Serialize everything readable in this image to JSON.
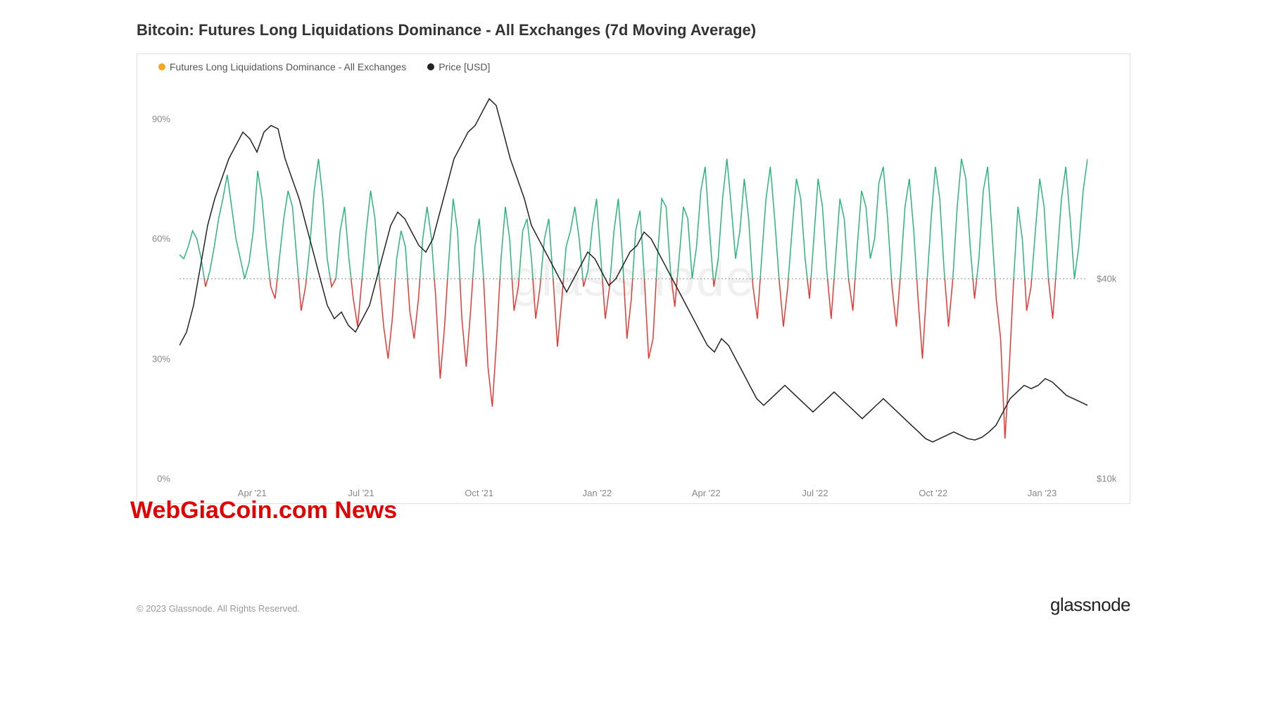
{
  "title": "Bitcoin: Futures Long Liquidations Dominance - All Exchanges (7d Moving Average)",
  "legend": {
    "series1": {
      "label": "Futures Long Liquidations Dominance - All Exchanges",
      "color": "#f5a623"
    },
    "series2": {
      "label": "Price [USD]",
      "color": "#222222"
    }
  },
  "watermark_center": "glassnode",
  "watermark_overlay": "WebGiaCoin.com News",
  "copyright": "© 2023 Glassnode. All Rights Reserved.",
  "brand": "glassnode",
  "chart": {
    "type": "line",
    "background_color": "#ffffff",
    "border_color": "#e0e0e0",
    "threshold_line": {
      "y_percent": 50,
      "color": "#888888",
      "dash": "2,3"
    },
    "y_left": {
      "min": 0,
      "max": 100,
      "ticks": [
        0,
        30,
        60,
        90
      ],
      "labels": [
        "0%",
        "30%",
        "60%",
        "90%"
      ],
      "color": "#888888",
      "fontsize": 13
    },
    "y_right": {
      "min": 10000,
      "max": 70000,
      "ticks": [
        10000,
        40000
      ],
      "labels": [
        "$10k",
        "$40k"
      ],
      "color": "#888888",
      "fontsize": 13
    },
    "x_axis": {
      "ticks_pct": [
        8,
        20,
        33,
        46,
        58,
        70,
        83,
        95
      ],
      "labels": [
        "Apr '21",
        "Jul '21",
        "Oct '21",
        "Jan '22",
        "Apr '22",
        "Jul '22",
        "Oct '22",
        "Jan '23"
      ],
      "color": "#888888",
      "fontsize": 13
    },
    "colors": {
      "above": "#2ab57d",
      "below": "#e53935",
      "price": "#222222"
    },
    "line_width": 1.5,
    "dominance_series": [
      56,
      55,
      58,
      62,
      60,
      55,
      48,
      52,
      58,
      65,
      70,
      76,
      68,
      60,
      55,
      50,
      54,
      62,
      77,
      70,
      58,
      48,
      45,
      55,
      65,
      72,
      68,
      55,
      42,
      48,
      58,
      72,
      80,
      70,
      55,
      48,
      50,
      62,
      68,
      55,
      45,
      38,
      50,
      62,
      72,
      65,
      50,
      38,
      30,
      40,
      55,
      62,
      58,
      42,
      35,
      45,
      60,
      68,
      60,
      45,
      25,
      38,
      55,
      70,
      62,
      40,
      28,
      42,
      58,
      65,
      50,
      28,
      18,
      35,
      55,
      68,
      60,
      42,
      48,
      62,
      65,
      55,
      40,
      48,
      60,
      65,
      50,
      33,
      45,
      58,
      62,
      68,
      60,
      48,
      52,
      63,
      70,
      55,
      40,
      48,
      62,
      70,
      55,
      35,
      45,
      62,
      67,
      50,
      30,
      35,
      55,
      70,
      68,
      52,
      43,
      55,
      68,
      65,
      50,
      58,
      72,
      78,
      62,
      48,
      55,
      70,
      80,
      68,
      55,
      62,
      75,
      65,
      48,
      40,
      55,
      70,
      78,
      65,
      50,
      38,
      48,
      62,
      75,
      70,
      55,
      45,
      60,
      75,
      68,
      52,
      40,
      55,
      70,
      65,
      50,
      42,
      58,
      72,
      68,
      55,
      60,
      74,
      78,
      65,
      48,
      38,
      52,
      68,
      75,
      62,
      45,
      30,
      48,
      65,
      78,
      70,
      52,
      38,
      50,
      68,
      80,
      75,
      58,
      45,
      55,
      72,
      78,
      62,
      45,
      35,
      10,
      28,
      50,
      68,
      60,
      42,
      48,
      62,
      75,
      68,
      50,
      40,
      55,
      70,
      78,
      65,
      50,
      58,
      72,
      80
    ],
    "price_series": [
      30000,
      32000,
      36000,
      42000,
      48000,
      52000,
      55000,
      58000,
      60000,
      62000,
      61000,
      59000,
      62000,
      63000,
      62500,
      58000,
      55000,
      52000,
      48000,
      44000,
      40000,
      36000,
      34000,
      35000,
      33000,
      32000,
      34000,
      36000,
      40000,
      44000,
      48000,
      50000,
      49000,
      47000,
      45000,
      44000,
      46000,
      50000,
      54000,
      58000,
      60000,
      62000,
      63000,
      65000,
      67000,
      66000,
      62000,
      58000,
      55000,
      52000,
      48000,
      46000,
      44000,
      42000,
      40000,
      38000,
      40000,
      42000,
      44000,
      43000,
      41000,
      39000,
      40000,
      42000,
      44000,
      45000,
      47000,
      46000,
      44000,
      42000,
      40000,
      38000,
      36000,
      34000,
      32000,
      30000,
      29000,
      31000,
      30000,
      28000,
      26000,
      24000,
      22000,
      21000,
      22000,
      23000,
      24000,
      23000,
      22000,
      21000,
      20000,
      21000,
      22000,
      23000,
      22000,
      21000,
      20000,
      19000,
      20000,
      21000,
      22000,
      21000,
      20000,
      19000,
      18000,
      17000,
      16000,
      15500,
      16000,
      16500,
      17000,
      16500,
      16000,
      15800,
      16200,
      17000,
      18000,
      20000,
      22000,
      23000,
      24000,
      23500,
      24000,
      25000,
      24500,
      23500,
      22500,
      22000,
      21500,
      21000
    ]
  }
}
